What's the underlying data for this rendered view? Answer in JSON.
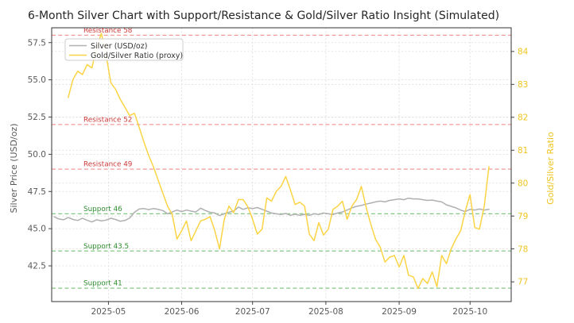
{
  "chart_data": {
    "type": "line",
    "title": "6-Month Silver Chart with Support/Resistance & Gold/Silver Ratio Insight (Simulated)",
    "x_unit": "trading days (6 months, Apr 2025 - Oct 2025), sampled every 2 days",
    "grid": true,
    "legend_position": "upper left",
    "axes": {
      "x": {
        "domain_days": [
          0,
          185
        ],
        "ticks": [
          {
            "day": 23,
            "label": "2025-05"
          },
          {
            "day": 54,
            "label": "2025-06"
          },
          {
            "day": 84,
            "label": "2025-07"
          },
          {
            "day": 115,
            "label": "2025-08"
          },
          {
            "day": 146,
            "label": "2025-09"
          },
          {
            "day": 176,
            "label": "2025-10"
          }
        ]
      },
      "left": {
        "label": "Silver Price (USD/oz)",
        "range": [
          40.1,
          58.5
        ],
        "ticks": [
          {
            "v": 42.5,
            "label": "42.5"
          },
          {
            "v": 45.0,
            "label": "45.0"
          },
          {
            "v": 47.5,
            "label": "47.5"
          },
          {
            "v": 50.0,
            "label": "50.0"
          },
          {
            "v": 52.5,
            "label": "52.5"
          },
          {
            "v": 55.0,
            "label": "55.0"
          },
          {
            "v": 57.5,
            "label": "57.5"
          }
        ]
      },
      "right": {
        "label": "Gold/Silver Ratio",
        "range": [
          76.4,
          84.72
        ],
        "ticks": [
          {
            "v": 77,
            "label": "77"
          },
          {
            "v": 78,
            "label": "78"
          },
          {
            "v": 79,
            "label": "79"
          },
          {
            "v": 80,
            "label": "80"
          },
          {
            "v": 81,
            "label": "81"
          },
          {
            "v": 82,
            "label": "82"
          },
          {
            "v": 83,
            "label": "83"
          },
          {
            "v": 84,
            "label": "84"
          }
        ]
      }
    },
    "levels": [
      {
        "label": "Resistance 58",
        "value": 58,
        "type": "resistance"
      },
      {
        "label": "Resistance 52",
        "value": 52,
        "type": "resistance"
      },
      {
        "label": "Resistance 49",
        "value": 49,
        "type": "resistance"
      },
      {
        "label": "Support 46",
        "value": 46,
        "type": "support"
      },
      {
        "label": "Support 43.5",
        "value": 43.5,
        "type": "support"
      },
      {
        "label": "Support 41",
        "value": 41,
        "type": "support"
      }
    ],
    "legend": {
      "items": [
        {
          "label": "Silver (USD/oz)",
          "color": "#b0b0b0"
        },
        {
          "label": "Gold/Silver Ratio (proxy)",
          "color": "#fbd445"
        }
      ]
    },
    "colors": {
      "silver_line": "#b0b0b0",
      "ratio_line": "#fbd445",
      "resistance_line": "#f29a9a",
      "resistance_text": "#cc3b3b",
      "support_line": "#85c785",
      "support_text": "#2f8b2f",
      "grid": "#dcdcdc",
      "spine": "#333333",
      "axis_text": "#595959",
      "ratio_text": "#eec520"
    },
    "series": [
      {
        "name": "Silver (USD/oz)",
        "axis": "left",
        "color": "#b0b0b0",
        "x_start_day": 0,
        "x_step_days": 2,
        "values": [
          45.8,
          45.65,
          45.6,
          45.75,
          45.62,
          45.55,
          45.7,
          45.56,
          45.45,
          45.6,
          45.52,
          45.58,
          45.7,
          45.62,
          45.5,
          45.55,
          45.72,
          46.1,
          46.32,
          46.35,
          46.28,
          46.35,
          46.3,
          46.22,
          46.0,
          46.12,
          46.25,
          46.15,
          46.25,
          46.18,
          46.12,
          46.38,
          46.22,
          46.1,
          46.05,
          45.88,
          46.0,
          46.1,
          46.18,
          46.45,
          46.3,
          46.4,
          46.35,
          46.42,
          46.3,
          46.18,
          46.05,
          46.0,
          45.95,
          46.02,
          45.9,
          45.97,
          45.9,
          45.96,
          45.9,
          46.0,
          45.95,
          46.05,
          46.0,
          45.95,
          46.05,
          46.12,
          46.25,
          46.4,
          46.5,
          46.56,
          46.65,
          46.72,
          46.8,
          46.85,
          46.8,
          46.9,
          46.95,
          47.0,
          46.95,
          47.05,
          47.0,
          47.0,
          46.95,
          46.9,
          46.92,
          46.85,
          46.8,
          46.6,
          46.5,
          46.4,
          46.25,
          46.15,
          46.3,
          46.25,
          46.32,
          46.25,
          46.3
        ]
      },
      {
        "name": "Gold/Silver Ratio (proxy)",
        "axis": "right",
        "color": "#fbd445",
        "x_start_day": 6,
        "x_step_days": 2,
        "values": [
          82.6,
          83.15,
          83.4,
          83.3,
          83.6,
          83.5,
          84.1,
          84.55,
          83.9,
          83.05,
          82.85,
          82.55,
          82.3,
          82.05,
          82.12,
          81.7,
          81.25,
          80.85,
          80.5,
          80.1,
          79.7,
          79.3,
          79.05,
          78.3,
          78.55,
          78.85,
          78.25,
          78.55,
          78.85,
          78.9,
          78.98,
          78.55,
          78.0,
          78.9,
          79.3,
          79.1,
          79.5,
          79.5,
          79.28,
          78.9,
          78.45,
          78.6,
          79.55,
          79.45,
          79.75,
          79.9,
          80.2,
          79.8,
          79.35,
          79.42,
          79.3,
          78.45,
          78.25,
          78.8,
          78.42,
          78.6,
          79.2,
          79.3,
          79.45,
          78.9,
          79.3,
          79.5,
          79.9,
          79.28,
          78.75,
          78.3,
          78.05,
          77.6,
          77.75,
          77.8,
          77.45,
          77.8,
          77.2,
          77.15,
          76.8,
          77.1,
          76.95,
          77.3,
          76.85,
          77.8,
          77.55,
          78.0,
          78.3,
          78.55,
          79.15,
          79.65,
          78.65,
          78.6,
          79.3,
          80.5
        ]
      }
    ]
  }
}
